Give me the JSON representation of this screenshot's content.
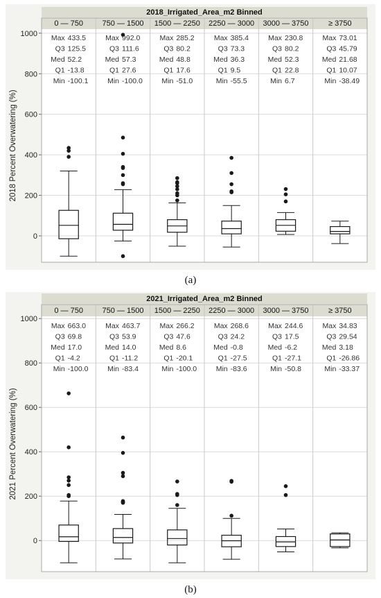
{
  "captions": {
    "a": "(a)",
    "b": "(b)"
  },
  "colors": {
    "panel_bg": "#f3f3ef",
    "header_bg": "#dcdcd0",
    "plot_bg": "#ffffff",
    "grid": "#d9d9d9",
    "ink": "#1a1a1a",
    "text": "#333333"
  },
  "chart_data": [
    {
      "type": "boxplot",
      "title": "2018_Irrigated_Area_m2 Binned",
      "ylabel": "2018 Percent Overwatering (%)",
      "ylim": [
        -130,
        1020
      ],
      "yticks": [
        0,
        200,
        400,
        600,
        800,
        1000
      ],
      "grid": true,
      "categories": [
        "0 — 750",
        "750 — 1500",
        "1500 — 2250",
        "2250 — 3000",
        "3000 — 3750",
        "≥ 3750"
      ],
      "stats_labels": [
        "Max",
        "Q3",
        "Med",
        "Q1",
        "Min"
      ],
      "stats_text": [
        [
          "433.5",
          "125.5",
          "52.2",
          "-13.8",
          "-100.1"
        ],
        [
          "992.0",
          "111.6",
          "57.3",
          "27.6",
          "-100.0"
        ],
        [
          "285.2",
          "80.2",
          "48.8",
          "17.6",
          "-51.0"
        ],
        [
          "385.4",
          "73.3",
          "36.3",
          "9.5",
          "-55.5"
        ],
        [
          "230.8",
          "80.2",
          "52.3",
          "22.8",
          "6.7"
        ],
        [
          "73.01",
          "45.79",
          "21.68",
          "10.07",
          "-38.49"
        ]
      ],
      "boxes": [
        {
          "whisker_low": -100,
          "q1": -14,
          "median": 52,
          "q3": 126,
          "whisker_high": 320,
          "outliers": [
            390,
            420,
            434
          ]
        },
        {
          "whisker_low": -25,
          "q1": 28,
          "median": 57,
          "q3": 112,
          "whisker_high": 228,
          "outliers": [
            -100,
            255,
            260,
            300,
            335,
            340,
            405,
            485,
            992
          ]
        },
        {
          "whisker_low": -51,
          "q1": 18,
          "median": 49,
          "q3": 80,
          "whisker_high": 163,
          "outliers": [
            175,
            200,
            210,
            230,
            245,
            260,
            265,
            285
          ]
        },
        {
          "whisker_low": -55,
          "q1": 10,
          "median": 36,
          "q3": 73,
          "whisker_high": 150,
          "outliers": [
            215,
            220,
            255,
            310,
            385
          ]
        },
        {
          "whisker_low": 7,
          "q1": 23,
          "median": 52,
          "q3": 80,
          "whisker_high": 115,
          "outliers": [
            170,
            205,
            231
          ]
        },
        {
          "whisker_low": -38,
          "q1": 10,
          "median": 22,
          "q3": 46,
          "whisker_high": 73,
          "outliers": []
        }
      ]
    },
    {
      "type": "boxplot",
      "title": "2021_Irrigated_Area_m2 Binned",
      "ylabel": "2021 Percent Overwatering (%)",
      "ylim": [
        -140,
        1010
      ],
      "yticks": [
        0,
        200,
        400,
        600,
        800,
        1000
      ],
      "grid": true,
      "categories": [
        "0 — 750",
        "750 — 1500",
        "1500 — 2250",
        "2250 — 3000",
        "3000 — 3750",
        "≥ 3750"
      ],
      "stats_labels": [
        "Max",
        "Q3",
        "Med",
        "Q1",
        "Min"
      ],
      "stats_text": [
        [
          "663.0",
          "69.8",
          "17.0",
          "-4.2",
          "-100.0"
        ],
        [
          "463.7",
          "53.9",
          "14.0",
          "-11.2",
          "-83.4"
        ],
        [
          "266.2",
          "47.6",
          "8.6",
          "-20.1",
          "-100.0"
        ],
        [
          "268.6",
          "24.2",
          "-0.8",
          "-27.5",
          "-83.6"
        ],
        [
          "244.6",
          "17.5",
          "-6.2",
          "-27.1",
          "-50.8"
        ],
        [
          "34.83",
          "29.54",
          "3.18",
          "-26.86",
          "-33.37"
        ]
      ],
      "boxes": [
        {
          "whisker_low": -100,
          "q1": -4,
          "median": 17,
          "q3": 70,
          "whisker_high": 178,
          "outliers": [
            200,
            205,
            250,
            270,
            285,
            420,
            663
          ]
        },
        {
          "whisker_low": -83,
          "q1": -11,
          "median": 14,
          "q3": 54,
          "whisker_high": 118,
          "outliers": [
            170,
            172,
            175,
            178,
            290,
            305,
            395,
            464
          ]
        },
        {
          "whisker_low": -100,
          "q1": -20,
          "median": 9,
          "q3": 48,
          "whisker_high": 145,
          "outliers": [
            160,
            205,
            210,
            266
          ]
        },
        {
          "whisker_low": -84,
          "q1": -28,
          "median": -1,
          "q3": 24,
          "whisker_high": 100,
          "outliers": [
            112,
            265,
            269
          ]
        },
        {
          "whisker_low": -51,
          "q1": -27,
          "median": -6,
          "q3": 18,
          "whisker_high": 52,
          "outliers": [
            205,
            245
          ]
        },
        {
          "whisker_low": -33,
          "q1": -27,
          "median": 3,
          "q3": 30,
          "whisker_high": 35,
          "outliers": []
        }
      ]
    }
  ]
}
